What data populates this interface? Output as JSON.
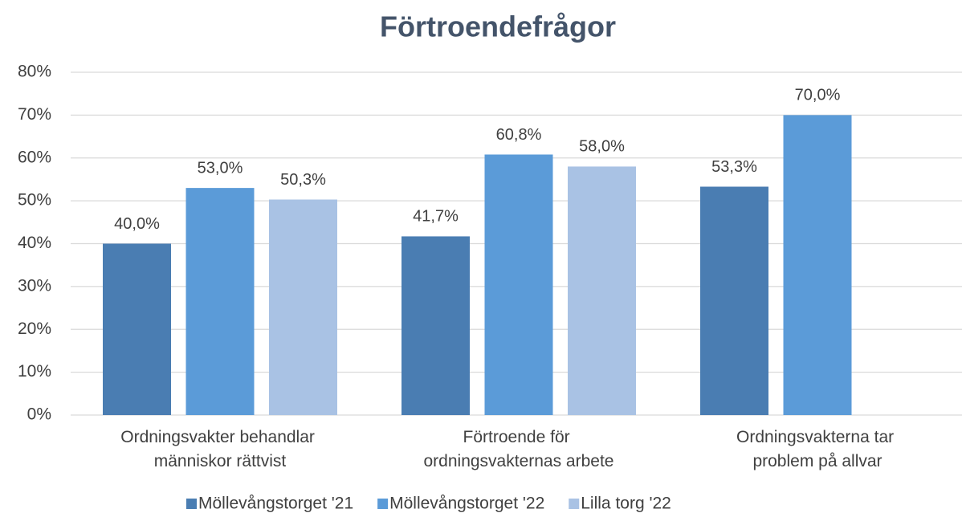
{
  "chart_data": {
    "type": "bar",
    "title": "Förtroendefrågor",
    "categories": [
      "Ordningsvakter behandlar människor rättvist",
      "Förtroende för ordningsvakternas arbete",
      "Ordningsvakterna tar problem på allvar"
    ],
    "series": [
      {
        "name": "Möllevångstorget '21",
        "color": "#4a7db2",
        "values": [
          40.0,
          41.7,
          53.3
        ],
        "value_labels": [
          "40,0%",
          "41,7%",
          "53,3%"
        ]
      },
      {
        "name": "Möllevångstorget '22",
        "color": "#5b9bd8",
        "values": [
          53.0,
          60.8,
          70.0
        ],
        "value_labels": [
          "53,0%",
          "60,8%",
          "70,0%"
        ]
      },
      {
        "name": "Lilla torg '22",
        "color": "#a9c2e4",
        "values": [
          50.3,
          58.0,
          null
        ],
        "value_labels": [
          "50,3%",
          "58,0%",
          null
        ]
      }
    ],
    "ylim": [
      0,
      80
    ],
    "yticks": [
      {
        "value": 0,
        "label": "0%"
      },
      {
        "value": 10,
        "label": "10%"
      },
      {
        "value": 20,
        "label": "20%"
      },
      {
        "value": 30,
        "label": "30%"
      },
      {
        "value": 40,
        "label": "40%"
      },
      {
        "value": 50,
        "label": "50%"
      },
      {
        "value": 60,
        "label": "60%"
      },
      {
        "value": 70,
        "label": "70%"
      },
      {
        "value": 80,
        "label": "80%"
      }
    ],
    "grid": true,
    "legend": "bottom"
  }
}
